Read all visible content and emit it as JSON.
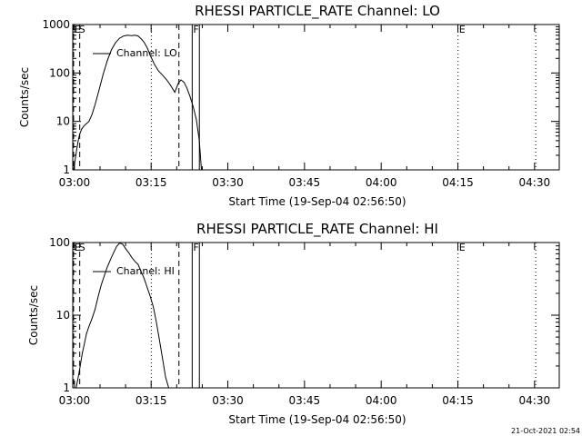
{
  "footer": {
    "timestamp": "21-Oct-2021 02:54"
  },
  "chart_data": [
    {
      "type": "line",
      "title": "RHESSI PARTICLE_RATE Channel: LO",
      "xlabel": "Start Time (19-Sep-04 02:56:50)",
      "ylabel": "Counts/sec",
      "yscale": "log",
      "xlim": [
        2.8333,
        98.0
      ],
      "ylim": [
        1,
        1000
      ],
      "x_ticks": [
        {
          "value": 3.167,
          "label": "03:00"
        },
        {
          "value": 18.167,
          "label": "03:15"
        },
        {
          "value": 33.167,
          "label": "03:30"
        },
        {
          "value": 48.167,
          "label": "03:45"
        },
        {
          "value": 63.167,
          "label": "04:00"
        },
        {
          "value": 78.167,
          "label": "04:15"
        },
        {
          "value": 93.167,
          "label": "04:30"
        }
      ],
      "y_ticks": [
        {
          "value": 1,
          "label": "1"
        },
        {
          "value": 10,
          "label": "10"
        },
        {
          "value": 100,
          "label": "100"
        },
        {
          "value": 1000,
          "label": "1000"
        }
      ],
      "legend": {
        "label": "Channel: LO",
        "placement": "top-left"
      },
      "markers": [
        {
          "label": "E",
          "time": 3.0,
          "style": "dashed",
          "text_anchor": "start"
        },
        {
          "label": "S",
          "time": 4.2,
          "style": "dashed",
          "text_anchor": "end"
        },
        {
          "time": 18.2,
          "style": "dotted"
        },
        {
          "time": 23.6,
          "style": "dashed"
        },
        {
          "label": "F",
          "time": 26.2,
          "style": "solid",
          "text_anchor": "start"
        },
        {
          "time": 27.6,
          "style": "solid"
        },
        {
          "label": "E",
          "time": 78.2,
          "style": "dotted",
          "text_anchor": "start"
        },
        {
          "time": 93.4,
          "style": "dotted"
        }
      ],
      "series": [
        {
          "name": "Channel: LO",
          "x": [
            3.0,
            3.3,
            3.6,
            3.9,
            4.2,
            4.6,
            5.0,
            5.5,
            6.0,
            6.6,
            7.2,
            8.0,
            8.8,
            9.6,
            10.4,
            11.2,
            12.0,
            12.8,
            13.6,
            14.3,
            15.0,
            15.6,
            16.2,
            16.8,
            17.4,
            18.0,
            18.8,
            19.6,
            20.4,
            21.2,
            22.0,
            22.8,
            23.5,
            24.0,
            24.6,
            25.2,
            25.8,
            26.4,
            27.0,
            27.6,
            28.0
          ],
          "y": [
            1.0,
            1.6,
            2.6,
            4.0,
            5.5,
            7.0,
            8.0,
            9.0,
            10.0,
            14.0,
            22.0,
            45.0,
            95.0,
            180.0,
            300.0,
            420.0,
            520.0,
            580.0,
            600.0,
            590.0,
            600.0,
            580.0,
            510.0,
            430.0,
            330.0,
            230.0,
            150.0,
            110.0,
            90.0,
            72.0,
            55.0,
            40.0,
            62.0,
            72.0,
            64.0,
            48.0,
            32.0,
            20.0,
            11.0,
            4.0,
            1.0
          ]
        }
      ]
    },
    {
      "type": "line",
      "title": "RHESSI PARTICLE_RATE Channel: HI",
      "xlabel": "Start Time (19-Sep-04 02:56:50)",
      "ylabel": "Counts/sec",
      "yscale": "log",
      "xlim": [
        2.8333,
        98.0
      ],
      "ylim": [
        1,
        100
      ],
      "x_ticks": [
        {
          "value": 3.167,
          "label": "03:00"
        },
        {
          "value": 18.167,
          "label": "03:15"
        },
        {
          "value": 33.167,
          "label": "03:30"
        },
        {
          "value": 48.167,
          "label": "03:45"
        },
        {
          "value": 63.167,
          "label": "04:00"
        },
        {
          "value": 78.167,
          "label": "04:15"
        },
        {
          "value": 93.167,
          "label": "04:30"
        }
      ],
      "y_ticks": [
        {
          "value": 1,
          "label": "1"
        },
        {
          "value": 10,
          "label": "10"
        },
        {
          "value": 100,
          "label": "100"
        }
      ],
      "legend": {
        "label": "Channel: HI",
        "placement": "top-left"
      },
      "markers": [
        {
          "label": "E",
          "time": 3.0,
          "style": "dashed",
          "text_anchor": "start"
        },
        {
          "label": "S",
          "time": 4.2,
          "style": "dashed",
          "text_anchor": "end"
        },
        {
          "time": 18.2,
          "style": "dotted"
        },
        {
          "time": 23.6,
          "style": "dashed"
        },
        {
          "label": "F",
          "time": 26.2,
          "style": "solid",
          "text_anchor": "start"
        },
        {
          "time": 27.6,
          "style": "solid"
        },
        {
          "label": "E",
          "time": 78.2,
          "style": "dotted",
          "text_anchor": "start"
        },
        {
          "time": 93.4,
          "style": "dotted"
        }
      ],
      "series": [
        {
          "name": "Channel: HI",
          "x": [
            3.5,
            3.9,
            4.3,
            4.7,
            5.1,
            5.5,
            6.0,
            6.6,
            7.2,
            7.8,
            8.4,
            9.0,
            9.6,
            10.2,
            10.8,
            11.4,
            12.0,
            12.6,
            13.2,
            13.8,
            14.4,
            15.0,
            15.6,
            16.2,
            16.8,
            17.4,
            18.0,
            18.6,
            19.2,
            19.8,
            20.4,
            21.0,
            21.6
          ],
          "y": [
            1.0,
            1.4,
            2.0,
            3.0,
            4.0,
            5.5,
            7.0,
            9.0,
            12.0,
            18.0,
            26.0,
            35.0,
            46.0,
            58.0,
            72.0,
            88.0,
            98.0,
            95.0,
            82.0,
            72.0,
            62.0,
            55.0,
            50.0,
            40.0,
            32.0,
            24.0,
            18.0,
            13.0,
            8.0,
            4.5,
            2.5,
            1.4,
            1.0
          ]
        }
      ]
    }
  ]
}
